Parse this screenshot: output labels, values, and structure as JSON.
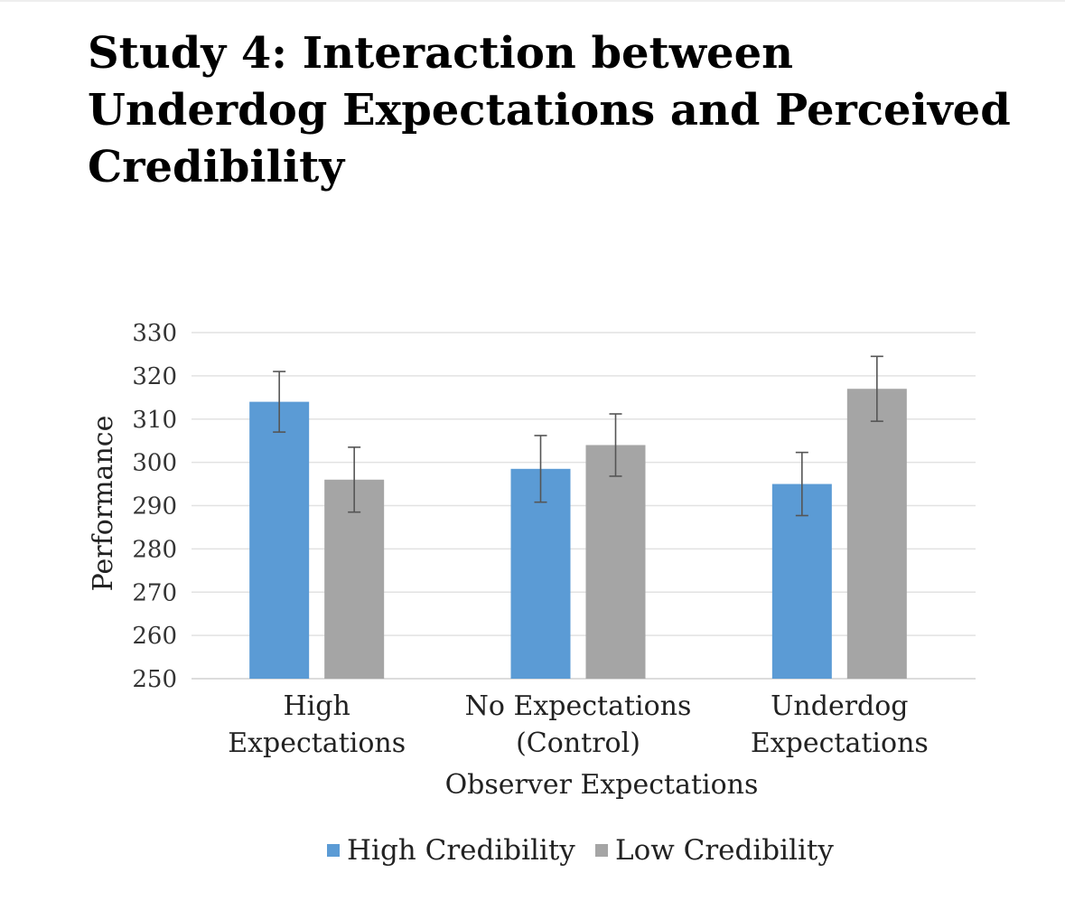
{
  "title_lines": [
    "Study 4: Interaction between",
    "Underdog Expectations and Perceived",
    "Credibility"
  ],
  "chart_data": {
    "type": "bar",
    "title": "Study 4: Interaction between Underdog Expectations and Perceived Credibility",
    "categories": [
      [
        "High",
        "Expectations"
      ],
      [
        "No Expectations",
        "(Control)"
      ],
      [
        "Underdog",
        "Expectations"
      ]
    ],
    "series": [
      {
        "name": "High Credibility",
        "color": "#5b9bd5",
        "values": [
          314,
          298.5,
          295
        ],
        "error": [
          7,
          7.7,
          7.3
        ]
      },
      {
        "name": "Low Credibility",
        "color": "#a5a5a5",
        "values": [
          296,
          304,
          317
        ],
        "error": [
          7.5,
          7.2,
          7.5
        ]
      }
    ],
    "xlabel": "Observer Expectations",
    "ylabel": "Performance",
    "ylim": [
      250,
      330
    ],
    "yticks": [
      250,
      260,
      270,
      280,
      290,
      300,
      310,
      320,
      330
    ],
    "grid": true,
    "legend_position": "bottom"
  }
}
